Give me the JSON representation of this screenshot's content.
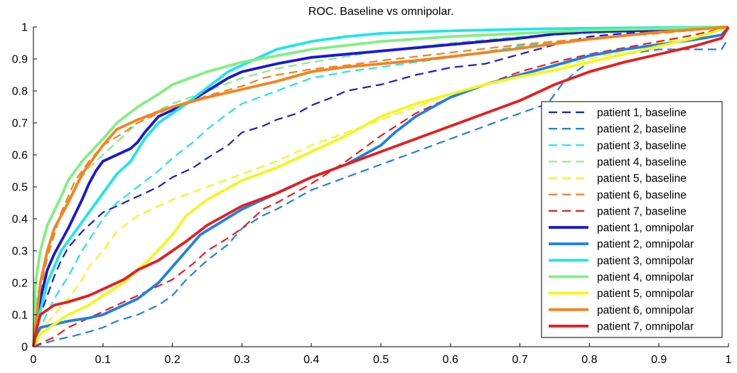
{
  "chart_data": {
    "type": "line",
    "title": "ROC. Baseline vs omnipolar.",
    "xlabel": "",
    "ylabel": "",
    "xlim": [
      0,
      1
    ],
    "ylim": [
      0,
      1
    ],
    "xticks": [
      0,
      0.1,
      0.2,
      0.3,
      0.4,
      0.5,
      0.6,
      0.7,
      0.8,
      0.9,
      1
    ],
    "xtick_labels": [
      "0",
      "0.1",
      "0.2",
      "0.3",
      "0.4",
      "0.5",
      "0.6",
      "0.7",
      "0.8",
      "0.9",
      "1"
    ],
    "yticks": [
      0,
      0.1,
      0.2,
      0.3,
      0.4,
      0.5,
      0.6,
      0.7,
      0.8,
      0.9,
      1
    ],
    "ytick_labels": [
      "0",
      "0.1",
      "0.2",
      "0.3",
      "0.4",
      "0.5",
      "0.6",
      "0.7",
      "0.8",
      "0.9",
      "1"
    ],
    "grid": false,
    "legend_location": "right",
    "axis_color": "#000000",
    "series": [
      {
        "name": "patient 1, baseline",
        "color": "#1919d6",
        "style": "dashed",
        "x": [
          0,
          0.005,
          0.01,
          0.02,
          0.03,
          0.04,
          0.05,
          0.07,
          0.1,
          0.13,
          0.15,
          0.18,
          0.2,
          0.23,
          0.25,
          0.28,
          0.3,
          0.33,
          0.35,
          0.38,
          0.4,
          0.43,
          0.45,
          0.5,
          0.55,
          0.6,
          0.65,
          0.7,
          0.75,
          0.8,
          0.85,
          0.9,
          0.95,
          1
        ],
        "y": [
          0,
          0.05,
          0.1,
          0.16,
          0.22,
          0.27,
          0.31,
          0.36,
          0.42,
          0.45,
          0.47,
          0.5,
          0.53,
          0.56,
          0.59,
          0.63,
          0.67,
          0.69,
          0.71,
          0.73,
          0.755,
          0.78,
          0.8,
          0.82,
          0.85,
          0.873,
          0.885,
          0.915,
          0.945,
          0.97,
          0.98,
          0.987,
          0.993,
          1
        ]
      },
      {
        "name": "patient 2, baseline",
        "color": "#1e80e6",
        "style": "dashed",
        "x": [
          0,
          0.03,
          0.06,
          0.085,
          0.1,
          0.12,
          0.15,
          0.18,
          0.2,
          0.22,
          0.25,
          0.28,
          0.3,
          0.33,
          0.35,
          0.4,
          0.45,
          0.5,
          0.55,
          0.6,
          0.65,
          0.7,
          0.74,
          0.76,
          0.78,
          0.8,
          0.85,
          0.9,
          0.95,
          0.99,
          1
        ],
        "y": [
          0,
          0.02,
          0.035,
          0.05,
          0.06,
          0.08,
          0.1,
          0.13,
          0.16,
          0.21,
          0.27,
          0.32,
          0.37,
          0.41,
          0.43,
          0.49,
          0.53,
          0.57,
          0.61,
          0.65,
          0.69,
          0.73,
          0.76,
          0.82,
          0.86,
          0.89,
          0.915,
          0.93,
          0.93,
          0.93,
          0.965
        ]
      },
      {
        "name": "patient 3, baseline",
        "color": "#1ee6e6",
        "style": "dashed",
        "x": [
          0,
          0.01,
          0.03,
          0.05,
          0.07,
          0.1,
          0.12,
          0.15,
          0.18,
          0.2,
          0.23,
          0.25,
          0.28,
          0.3,
          0.35,
          0.4,
          0.45,
          0.5,
          0.55,
          0.6,
          0.7,
          0.8,
          0.9,
          1
        ],
        "y": [
          0,
          0.06,
          0.15,
          0.22,
          0.3,
          0.4,
          0.45,
          0.5,
          0.55,
          0.59,
          0.64,
          0.68,
          0.73,
          0.76,
          0.8,
          0.84,
          0.86,
          0.875,
          0.89,
          0.905,
          0.94,
          0.965,
          0.985,
          1
        ]
      },
      {
        "name": "patient 4, baseline",
        "color": "#80f080",
        "style": "dashed",
        "x": [
          0,
          0.005,
          0.02,
          0.04,
          0.06,
          0.08,
          0.1,
          0.13,
          0.15,
          0.18,
          0.2,
          0.25,
          0.3,
          0.35,
          0.4,
          0.5,
          0.6,
          0.7,
          0.8,
          0.9,
          1
        ],
        "y": [
          0,
          0.15,
          0.3,
          0.42,
          0.5,
          0.56,
          0.6,
          0.66,
          0.7,
          0.74,
          0.76,
          0.8,
          0.84,
          0.87,
          0.89,
          0.925,
          0.95,
          0.97,
          0.98,
          0.99,
          1
        ]
      },
      {
        "name": "patient 5, baseline",
        "color": "#f5f51e",
        "style": "dashed",
        "x": [
          0,
          0.01,
          0.03,
          0.05,
          0.07,
          0.08,
          0.1,
          0.12,
          0.15,
          0.18,
          0.2,
          0.25,
          0.3,
          0.35,
          0.4,
          0.45,
          0.5,
          0.55,
          0.6,
          0.65,
          0.7,
          0.75,
          0.8,
          0.85,
          0.9,
          0.95,
          1
        ],
        "y": [
          0,
          0.05,
          0.1,
          0.15,
          0.21,
          0.25,
          0.3,
          0.36,
          0.41,
          0.44,
          0.46,
          0.5,
          0.54,
          0.58,
          0.63,
          0.67,
          0.71,
          0.75,
          0.79,
          0.82,
          0.85,
          0.875,
          0.9,
          0.925,
          0.95,
          0.975,
          1
        ]
      },
      {
        "name": "patient 6, baseline",
        "color": "#f5821e",
        "style": "dashed",
        "x": [
          0,
          0.005,
          0.02,
          0.04,
          0.06,
          0.08,
          0.1,
          0.13,
          0.15,
          0.2,
          0.25,
          0.3,
          0.33,
          0.35,
          0.4,
          0.45,
          0.5,
          0.6,
          0.7,
          0.8,
          0.9,
          1
        ],
        "y": [
          0,
          0.12,
          0.28,
          0.42,
          0.52,
          0.58,
          0.63,
          0.67,
          0.7,
          0.75,
          0.785,
          0.815,
          0.84,
          0.85,
          0.868,
          0.88,
          0.895,
          0.92,
          0.945,
          0.965,
          0.98,
          1
        ]
      },
      {
        "name": "patient 7, baseline",
        "color": "#e61e1e",
        "style": "dashed",
        "x": [
          0,
          0.01,
          0.03,
          0.05,
          0.08,
          0.1,
          0.13,
          0.15,
          0.18,
          0.2,
          0.23,
          0.25,
          0.28,
          0.3,
          0.33,
          0.35,
          0.4,
          0.45,
          0.5,
          0.55,
          0.6,
          0.65,
          0.7,
          0.75,
          0.8,
          0.85,
          0.9,
          0.95,
          1
        ],
        "y": [
          0,
          0.01,
          0.03,
          0.06,
          0.09,
          0.11,
          0.14,
          0.16,
          0.19,
          0.21,
          0.26,
          0.3,
          0.34,
          0.37,
          0.43,
          0.45,
          0.51,
          0.58,
          0.66,
          0.73,
          0.78,
          0.82,
          0.86,
          0.89,
          0.915,
          0.935,
          0.955,
          0.975,
          1
        ]
      },
      {
        "name": "patient 1, omnipolar",
        "color": "#1919d6",
        "style": "solid",
        "x": [
          0,
          0.005,
          0.01,
          0.02,
          0.03,
          0.05,
          0.07,
          0.08,
          0.09,
          0.1,
          0.12,
          0.14,
          0.15,
          0.16,
          0.18,
          0.2,
          0.22,
          0.25,
          0.28,
          0.3,
          0.35,
          0.4,
          0.45,
          0.5,
          0.55,
          0.6,
          0.65,
          0.7,
          0.75,
          0.8,
          0.9,
          1
        ],
        "y": [
          0,
          0.08,
          0.15,
          0.24,
          0.29,
          0.37,
          0.46,
          0.51,
          0.55,
          0.58,
          0.6,
          0.62,
          0.64,
          0.67,
          0.72,
          0.74,
          0.76,
          0.8,
          0.84,
          0.86,
          0.885,
          0.905,
          0.915,
          0.925,
          0.935,
          0.945,
          0.955,
          0.965,
          0.978,
          0.985,
          0.99,
          1
        ]
      },
      {
        "name": "patient 2, omnipolar",
        "color": "#1e80e6",
        "style": "solid",
        "x": [
          0,
          0.005,
          0.01,
          0.03,
          0.05,
          0.08,
          0.1,
          0.12,
          0.15,
          0.18,
          0.2,
          0.22,
          0.24,
          0.27,
          0.3,
          0.33,
          0.35,
          0.4,
          0.45,
          0.5,
          0.52,
          0.55,
          0.6,
          0.65,
          0.7,
          0.75,
          0.8,
          0.85,
          0.9,
          0.95,
          0.99,
          1
        ],
        "y": [
          0,
          0.04,
          0.06,
          0.07,
          0.08,
          0.09,
          0.1,
          0.12,
          0.15,
          0.2,
          0.25,
          0.3,
          0.35,
          0.39,
          0.43,
          0.46,
          0.48,
          0.53,
          0.57,
          0.63,
          0.67,
          0.72,
          0.78,
          0.82,
          0.85,
          0.88,
          0.91,
          0.93,
          0.945,
          0.96,
          0.975,
          1
        ]
      },
      {
        "name": "patient 3, omnipolar",
        "color": "#1ee6e6",
        "style": "solid",
        "x": [
          0,
          0.005,
          0.02,
          0.04,
          0.06,
          0.08,
          0.1,
          0.12,
          0.14,
          0.16,
          0.18,
          0.2,
          0.22,
          0.25,
          0.28,
          0.3,
          0.33,
          0.35,
          0.4,
          0.45,
          0.5,
          0.6,
          0.7,
          0.8,
          0.9,
          1
        ],
        "y": [
          0,
          0.07,
          0.2,
          0.3,
          0.36,
          0.42,
          0.48,
          0.54,
          0.58,
          0.65,
          0.7,
          0.73,
          0.76,
          0.81,
          0.86,
          0.88,
          0.91,
          0.93,
          0.955,
          0.97,
          0.98,
          0.988,
          0.993,
          0.996,
          0.998,
          1
        ]
      },
      {
        "name": "patient 4, omnipolar",
        "color": "#80f080",
        "style": "solid",
        "x": [
          0,
          0.003,
          0.01,
          0.02,
          0.04,
          0.05,
          0.07,
          0.1,
          0.12,
          0.15,
          0.18,
          0.2,
          0.25,
          0.3,
          0.35,
          0.4,
          0.5,
          0.6,
          0.7,
          0.8,
          0.9,
          1
        ],
        "y": [
          0,
          0.2,
          0.3,
          0.38,
          0.47,
          0.52,
          0.58,
          0.65,
          0.7,
          0.75,
          0.79,
          0.82,
          0.86,
          0.89,
          0.91,
          0.93,
          0.955,
          0.97,
          0.98,
          0.99,
          0.995,
          1
        ]
      },
      {
        "name": "patient 5, omnipolar",
        "color": "#f5f51e",
        "style": "solid",
        "x": [
          0,
          0.01,
          0.03,
          0.05,
          0.08,
          0.1,
          0.13,
          0.15,
          0.17,
          0.2,
          0.22,
          0.25,
          0.3,
          0.35,
          0.4,
          0.45,
          0.5,
          0.55,
          0.6,
          0.65,
          0.7,
          0.75,
          0.8,
          0.85,
          0.9,
          0.95,
          1
        ],
        "y": [
          0,
          0.04,
          0.07,
          0.1,
          0.13,
          0.16,
          0.2,
          0.24,
          0.28,
          0.35,
          0.41,
          0.46,
          0.52,
          0.56,
          0.61,
          0.66,
          0.72,
          0.76,
          0.79,
          0.82,
          0.845,
          0.865,
          0.89,
          0.915,
          0.94,
          0.965,
          1
        ]
      },
      {
        "name": "patient 6, omnipolar",
        "color": "#f5821e",
        "style": "solid",
        "x": [
          0,
          0.005,
          0.01,
          0.02,
          0.03,
          0.05,
          0.07,
          0.09,
          0.1,
          0.12,
          0.15,
          0.18,
          0.2,
          0.25,
          0.3,
          0.35,
          0.4,
          0.45,
          0.5,
          0.55,
          0.6,
          0.7,
          0.8,
          0.9,
          1
        ],
        "y": [
          0,
          0.1,
          0.2,
          0.3,
          0.37,
          0.45,
          0.54,
          0.6,
          0.63,
          0.68,
          0.71,
          0.735,
          0.75,
          0.78,
          0.805,
          0.83,
          0.86,
          0.875,
          0.885,
          0.895,
          0.907,
          0.933,
          0.962,
          0.984,
          1
        ]
      },
      {
        "name": "patient 7, omnipolar",
        "color": "#e61e1e",
        "style": "solid",
        "x": [
          0,
          0.005,
          0.01,
          0.03,
          0.05,
          0.08,
          0.1,
          0.13,
          0.15,
          0.18,
          0.2,
          0.22,
          0.25,
          0.3,
          0.35,
          0.4,
          0.45,
          0.5,
          0.55,
          0.6,
          0.65,
          0.7,
          0.75,
          0.8,
          0.85,
          0.9,
          0.95,
          0.99,
          1
        ],
        "y": [
          0,
          0.06,
          0.1,
          0.13,
          0.14,
          0.16,
          0.18,
          0.21,
          0.24,
          0.27,
          0.3,
          0.33,
          0.38,
          0.44,
          0.48,
          0.53,
          0.57,
          0.61,
          0.65,
          0.69,
          0.73,
          0.77,
          0.82,
          0.86,
          0.89,
          0.915,
          0.94,
          0.965,
          1
        ]
      }
    ]
  }
}
